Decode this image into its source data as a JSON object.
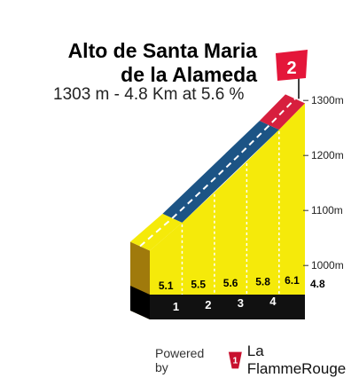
{
  "climb": {
    "name_line1": "Alto de Santa Maria",
    "name_line2": "de la Alameda",
    "summary": "1303 m - 4.8 Km at 5.6 %",
    "category": "2"
  },
  "chart_data": {
    "type": "area",
    "x_unit": "km",
    "y_unit": "m",
    "km_markers": [
      "1",
      "2",
      "3",
      "4"
    ],
    "total_distance_label": "4.8",
    "segments": [
      {
        "from_km": 0,
        "to_km": 1,
        "gradient": 5.1,
        "gradient_label": "5.1"
      },
      {
        "from_km": 1,
        "to_km": 2,
        "gradient": 5.5,
        "gradient_label": "5.5"
      },
      {
        "from_km": 2,
        "to_km": 3,
        "gradient": 5.6,
        "gradient_label": "5.6"
      },
      {
        "from_km": 3,
        "to_km": 4,
        "gradient": 5.8,
        "gradient_label": "5.8"
      },
      {
        "from_km": 4,
        "to_km": 4.8,
        "gradient": 6.1,
        "gradient_label": "6.1"
      }
    ],
    "profile": [
      {
        "km": 0,
        "elevation": 1035
      },
      {
        "km": 1,
        "elevation": 1086
      },
      {
        "km": 2,
        "elevation": 1141
      },
      {
        "km": 3,
        "elevation": 1197
      },
      {
        "km": 4,
        "elevation": 1255
      },
      {
        "km": 4.8,
        "elevation": 1303
      }
    ],
    "elevation_ticks": [
      {
        "value": 1000,
        "label": "1000m"
      },
      {
        "value": 1100,
        "label": "1100m"
      },
      {
        "value": 1200,
        "label": "1200m"
      },
      {
        "value": 1300,
        "label": "1300m"
      }
    ],
    "top_band_colors": [
      {
        "from_km": 0,
        "to_km": 1,
        "color": "#f5ea0a"
      },
      {
        "from_km": 1,
        "to_km": 4,
        "color": "#1c5485"
      },
      {
        "from_km": 4,
        "to_km": 4.8,
        "color": "#d71f3e"
      }
    ],
    "fill_color": "#f5ea0a",
    "side_color": "#a07a0c",
    "base_color": "#111111"
  },
  "footer": {
    "powered_by": "Powered by",
    "brand": "La FlammeRouge"
  }
}
